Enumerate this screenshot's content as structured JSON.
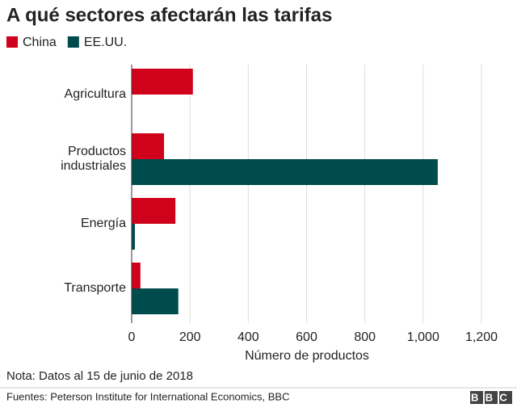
{
  "chart_data": {
    "type": "bar",
    "orientation": "horizontal",
    "title": "A qué sectores afectarán las tarifas",
    "categories": [
      "Agricultura",
      "Productos industriales",
      "Energía",
      "Transporte"
    ],
    "series": [
      {
        "name": "China",
        "color": "#d0021b",
        "values": [
          210,
          111,
          150,
          30
        ]
      },
      {
        "name": "EE.UU.",
        "color": "#004b4b",
        "values": [
          0,
          1050,
          11,
          160
        ]
      }
    ],
    "xlabel": "Número de productos",
    "xlim": [
      0,
      1200
    ],
    "xticks": [
      0,
      200,
      400,
      600,
      800,
      {
        "value": 1000,
        "label": "1,000"
      },
      {
        "value": 1200,
        "label": "1,200"
      }
    ],
    "grid": true,
    "note": "Nota: Datos al 15 de junio de 2018",
    "source": "Fuentes: Peterson Institute for International Economics, BBC",
    "logo": "BBC"
  }
}
